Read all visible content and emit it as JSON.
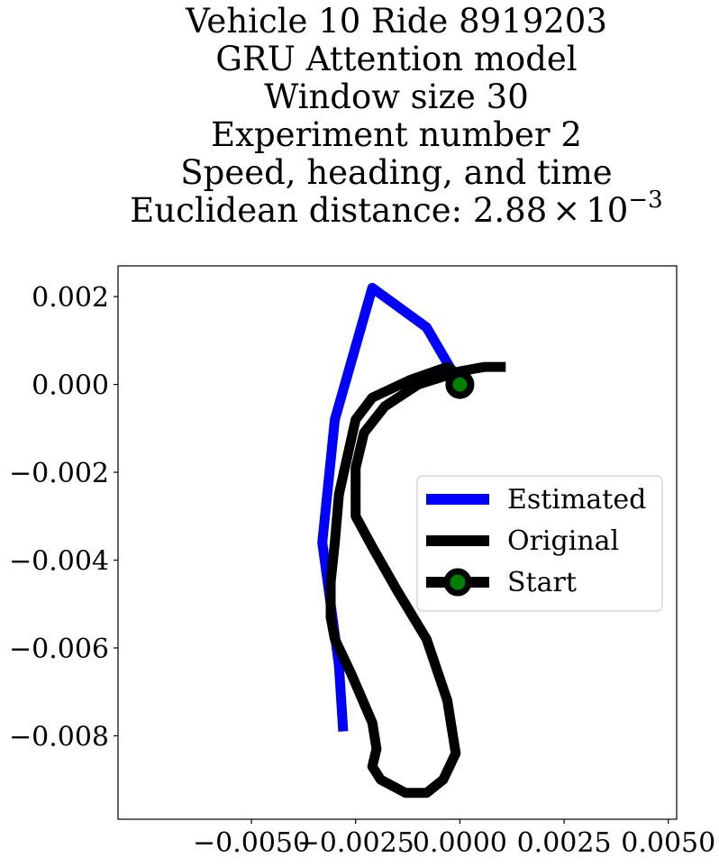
{
  "chart_data": {
    "type": "line",
    "title_lines": [
      "Vehicle 10 Ride 8919203",
      "GRU Attention model",
      "Window size 30",
      "Experiment number 2",
      "Speed, heading, and time"
    ],
    "title_metric": {
      "prefix": "Euclidean distance: 2.88",
      "times": "×",
      "base": "10",
      "exponent": "−3"
    },
    "xlabel": "",
    "ylabel": "",
    "xlim": [
      -0.0082,
      0.0052
    ],
    "ylim": [
      -0.0099,
      0.0027
    ],
    "xticks": [
      -0.005,
      -0.0025,
      0.0,
      0.0025,
      0.005
    ],
    "xtick_labels": [
      "−0.0050",
      "−0.0025",
      "0.0000",
      "0.0025",
      "0.0050"
    ],
    "yticks": [
      0.002,
      0.0,
      -0.002,
      -0.004,
      -0.006,
      -0.008
    ],
    "ytick_labels": [
      "0.002",
      "0.000",
      "−0.002",
      "−0.004",
      "−0.006",
      "−0.008"
    ],
    "grid": false,
    "legend_position": "center-right",
    "series": [
      {
        "name": "Estimated",
        "color": "#0000ff",
        "points": [
          [
            0.0,
            0.0
          ],
          [
            -0.0008,
            0.0013
          ],
          [
            -0.0021,
            0.0022
          ],
          [
            -0.003,
            -0.0008
          ],
          [
            -0.0033,
            -0.0036
          ],
          [
            -0.0029,
            -0.0064
          ],
          [
            -0.0028,
            -0.0079
          ]
        ]
      },
      {
        "name": "Original",
        "color": "#000000",
        "points": [
          [
            0.0011,
            0.0004
          ],
          [
            0.0006,
            0.0004
          ],
          [
            0.0,
            0.0003
          ],
          [
            -0.001,
            0.0
          ],
          [
            -0.0018,
            -0.0005
          ],
          [
            -0.0023,
            -0.0011
          ],
          [
            -0.0025,
            -0.0019
          ],
          [
            -0.0025,
            -0.003
          ],
          [
            -0.0021,
            -0.0037
          ],
          [
            -0.0015,
            -0.0047
          ],
          [
            -0.0008,
            -0.0058
          ],
          [
            -0.0003,
            -0.0072
          ],
          [
            -0.0001,
            -0.0084
          ],
          [
            -0.0004,
            -0.009
          ],
          [
            -0.0008,
            -0.0093
          ],
          [
            -0.0013,
            -0.0093
          ],
          [
            -0.0019,
            -0.009
          ],
          [
            -0.0021,
            -0.0087
          ],
          [
            -0.002,
            -0.0083
          ],
          [
            -0.0021,
            -0.0077
          ],
          [
            -0.0026,
            -0.0066
          ],
          [
            -0.003,
            -0.0058
          ],
          [
            -0.0031,
            -0.0053
          ],
          [
            -0.0031,
            -0.0045
          ],
          [
            -0.003,
            -0.0036
          ],
          [
            -0.0029,
            -0.0025
          ],
          [
            -0.0025,
            -0.0008
          ],
          [
            -0.0021,
            -0.0003
          ],
          [
            -0.0012,
            0.0001
          ],
          [
            -0.0003,
            0.0004
          ],
          [
            0.0,
            0.0002
          ]
        ]
      }
    ],
    "start": {
      "name": "Start",
      "x": 0.0,
      "y": 0.0,
      "marker_color": "#008000",
      "edge_color": "#000000"
    }
  }
}
